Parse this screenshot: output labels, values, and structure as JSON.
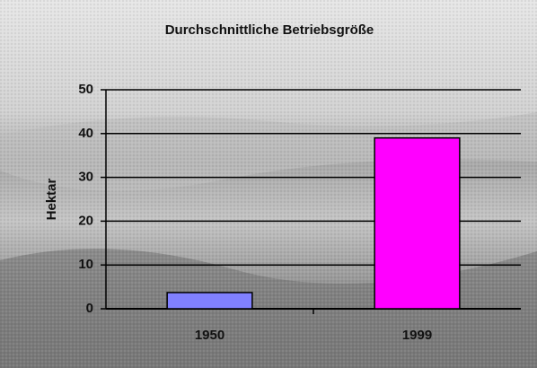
{
  "chart_data": {
    "type": "bar",
    "title": "Durchschnittliche Betriebsgröße",
    "y_label": "Hektar",
    "categories": [
      "1950",
      "1999"
    ],
    "series": [
      {
        "name": "1950",
        "color": "#8080ff",
        "values": [
          3.7,
          null
        ]
      },
      {
        "name": "1999",
        "color": "#ff00ff",
        "values": [
          null,
          39
        ]
      }
    ],
    "ylim": [
      0,
      50
    ],
    "yticks": [
      0,
      10,
      20,
      30,
      40,
      50
    ],
    "grid": true
  }
}
